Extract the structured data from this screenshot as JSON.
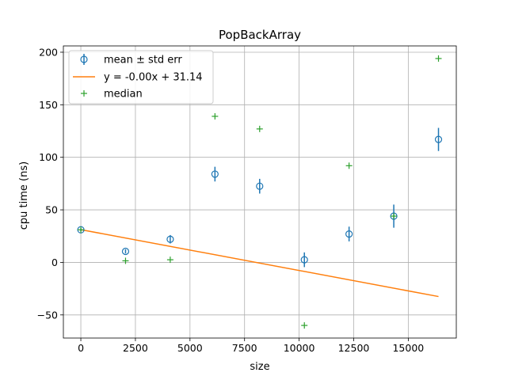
{
  "chart_data": {
    "type": "scatter",
    "title": "PopBackArray",
    "xlabel": "size",
    "ylabel": "cpu time (ns)",
    "xlim": [
      -800,
      17200
    ],
    "ylim": [
      -72,
      206
    ],
    "xticks": [
      0,
      2500,
      5000,
      7500,
      10000,
      12500,
      15000
    ],
    "xtick_labels": [
      "0",
      "2500",
      "5000",
      "7500",
      "10000",
      "12500",
      "15000"
    ],
    "yticks": [
      -50,
      0,
      50,
      100,
      150,
      200
    ],
    "ytick_labels": [
      "−50",
      "0",
      "50",
      "100",
      "150",
      "200"
    ],
    "grid": true,
    "legend_position": "top-left",
    "legend": [
      {
        "label": "mean ± std err",
        "marker": "open-circle-errorbar",
        "color": "#1f77b4"
      },
      {
        "label": "y = -0.00x + 31.14",
        "marker": "line",
        "color": "#ff7f0e"
      },
      {
        "label": "median",
        "marker": "plus",
        "color": "#2ca02c"
      }
    ],
    "series": [
      {
        "name": "mean ± std err",
        "color": "#1f77b4",
        "x": [
          1,
          2048,
          4096,
          6144,
          8192,
          10240,
          12288,
          14336,
          16384
        ],
        "y": [
          31,
          10.5,
          22,
          84,
          72.5,
          2.5,
          27,
          44,
          117
        ],
        "err": [
          1.5,
          2,
          4,
          7,
          7,
          7,
          7,
          11,
          11
        ]
      },
      {
        "name": "y = -0.00x + 31.14",
        "color": "#ff7f0e",
        "x": [
          1,
          16384
        ],
        "y": [
          31.14,
          -32.5
        ]
      },
      {
        "name": "median",
        "color": "#2ca02c",
        "x": [
          1,
          2048,
          4096,
          6144,
          8192,
          10240,
          12288,
          14336,
          16384
        ],
        "y": [
          31,
          1.5,
          2.5,
          139,
          127,
          -60,
          92,
          44,
          194
        ]
      }
    ]
  }
}
